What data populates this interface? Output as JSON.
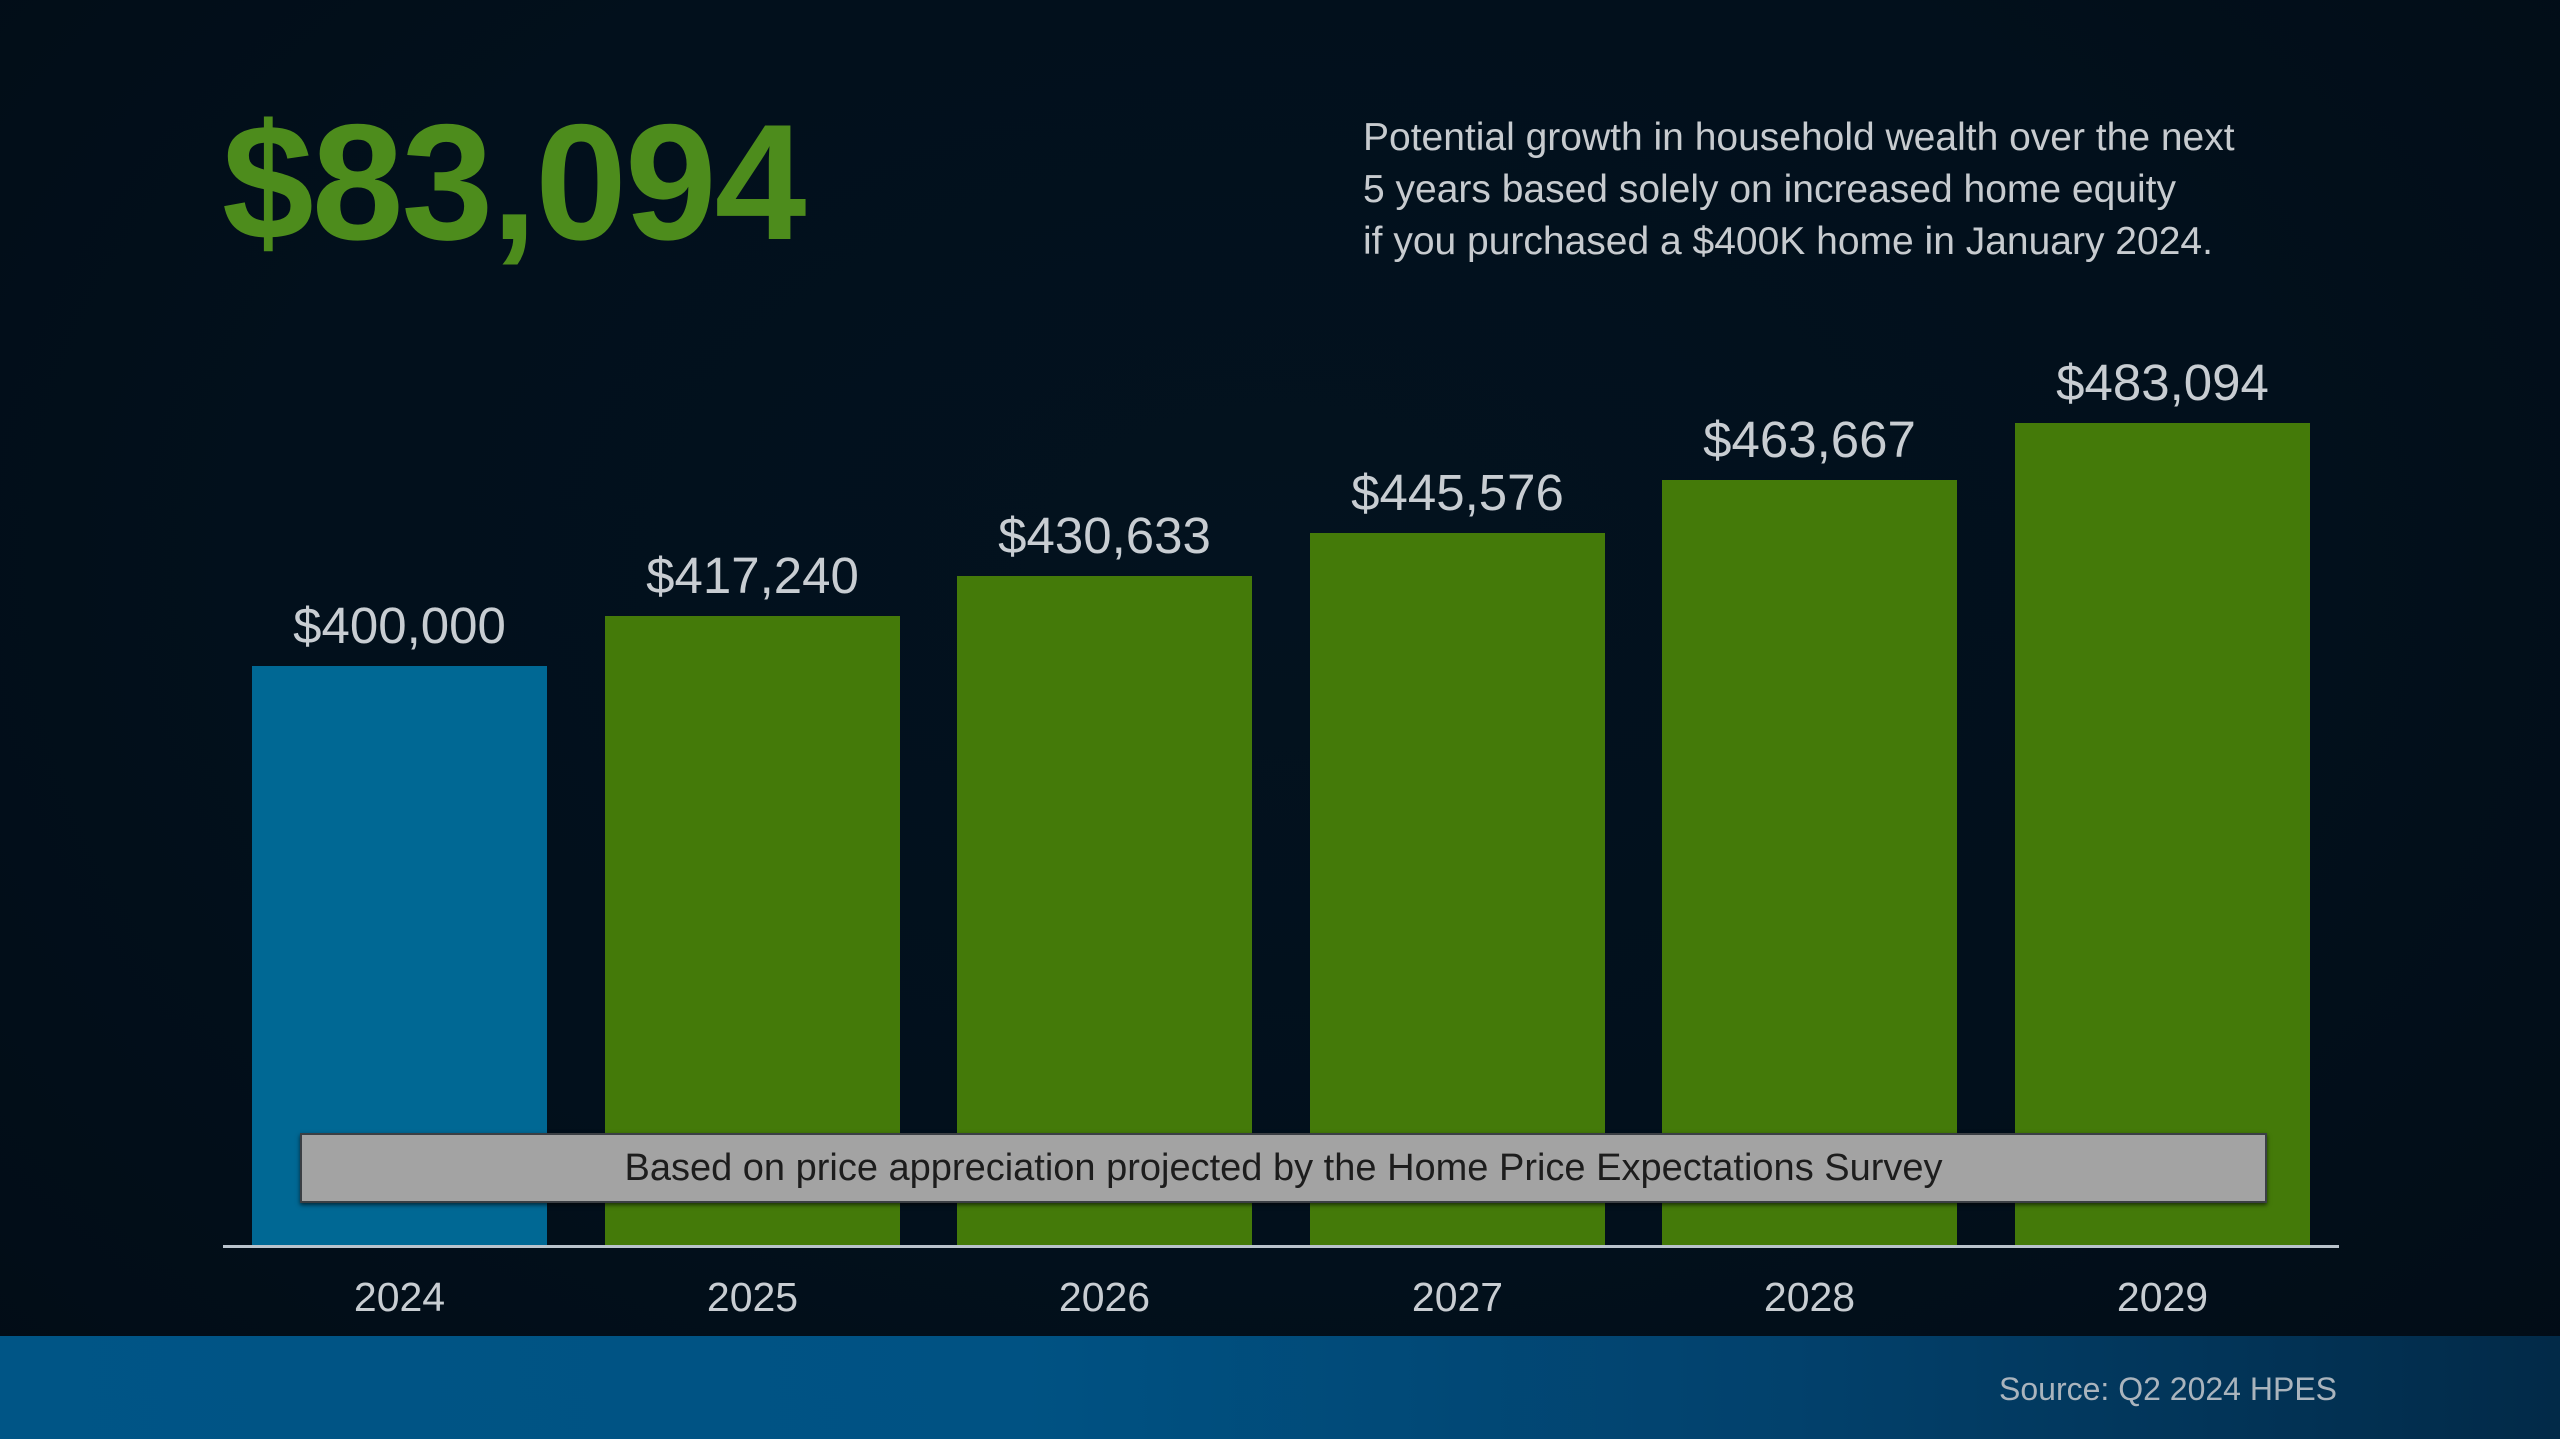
{
  "headline": "$83,094",
  "subtitle": [
    "Potential growth in household wealth over the next",
    "5 years based solely on increased home equity",
    "if you purchased a $400K home in January 2024."
  ],
  "banner": "Based on price appreciation projected by the Home Price Expectations Survey",
  "source": "Source: Q2 2024 HPES",
  "colors": {
    "background": "#02101c",
    "headline": "#4d8c1c",
    "bar_current": "#006894",
    "bar_projected": "#447a09",
    "footer": "#005586"
  },
  "chart_data": {
    "type": "bar",
    "title": "$83,094",
    "subtitle": "Potential growth in household wealth over the next 5 years based solely on increased home equity if you purchased a $400K home in January 2024.",
    "categories": [
      "2024",
      "2025",
      "2026",
      "2027",
      "2028",
      "2029"
    ],
    "values": [
      400000,
      417240,
      430633,
      445576,
      463667,
      483094
    ],
    "labels": [
      "$400,000",
      "$417,240",
      "$430,633",
      "$445,576",
      "$463,667",
      "$483,094"
    ],
    "bar_colors": [
      "#006894",
      "#447a09",
      "#447a09",
      "#447a09",
      "#447a09",
      "#447a09"
    ],
    "xlabel": "",
    "ylabel": "",
    "grid": false,
    "legend": null,
    "annotation": "Based on price appreciation projected by the Home Price Expectations Survey",
    "source": "Source: Q2 2024 HPES"
  }
}
